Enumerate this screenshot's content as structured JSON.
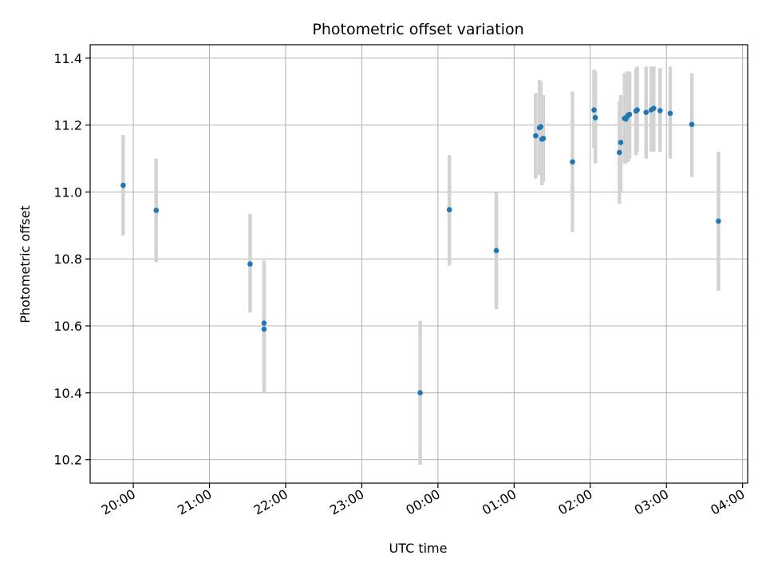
{
  "chart_data": {
    "type": "scatter",
    "title": "Photometric offset variation",
    "xlabel": "UTC time",
    "ylabel": "Photometric offset",
    "x_axis_type": "time",
    "xlim": [
      "19:26",
      "04:04"
    ],
    "ylim": [
      10.13,
      11.44
    ],
    "x_ticks": [
      "20:00",
      "21:00",
      "22:00",
      "23:00",
      "00:00",
      "01:00",
      "02:00",
      "03:00",
      "04:00"
    ],
    "x_tick_times": [
      "20:00",
      "21:00",
      "22:00",
      "23:00",
      "24:00",
      "25:00",
      "26:00",
      "27:00",
      "28:00"
    ],
    "y_ticks": [
      "10.2",
      "10.4",
      "10.6",
      "10.8",
      "11.0",
      "11.2",
      "11.4"
    ],
    "grid": true,
    "point_color": "#1f77b4",
    "errorbar_color": "#d3d3d3",
    "points": [
      {
        "time": "19:52",
        "value": 11.02,
        "low": 10.87,
        "high": 11.17
      },
      {
        "time": "20:18",
        "value": 10.945,
        "low": 10.79,
        "high": 11.1
      },
      {
        "time": "21:32",
        "value": 10.785,
        "low": 10.64,
        "high": 10.935
      },
      {
        "time": "21:43",
        "value": 10.608,
        "low": 10.42,
        "high": 10.795
      },
      {
        "time": "21:43",
        "value": 10.59,
        "low": 10.4,
        "high": 10.78
      },
      {
        "time": "23:46",
        "value": 10.4,
        "low": 10.185,
        "high": 10.615
      },
      {
        "time": "00:09",
        "value": 10.947,
        "low": 10.78,
        "high": 11.11
      },
      {
        "time": "00:46",
        "value": 10.825,
        "low": 10.65,
        "high": 11.0
      },
      {
        "time": "01:17",
        "value": 11.168,
        "low": 11.04,
        "high": 11.295
      },
      {
        "time": "01:20",
        "value": 11.192,
        "low": 11.05,
        "high": 11.335
      },
      {
        "time": "01:21",
        "value": 11.195,
        "low": 11.06,
        "high": 11.33
      },
      {
        "time": "01:22",
        "value": 11.158,
        "low": 11.02,
        "high": 11.29
      },
      {
        "time": "01:23",
        "value": 11.16,
        "low": 11.03,
        "high": 11.29
      },
      {
        "time": "01:46",
        "value": 11.09,
        "low": 10.88,
        "high": 11.3
      },
      {
        "time": "02:03",
        "value": 11.245,
        "low": 11.13,
        "high": 11.365
      },
      {
        "time": "02:04",
        "value": 11.222,
        "low": 11.085,
        "high": 11.36
      },
      {
        "time": "02:23",
        "value": 11.118,
        "low": 10.965,
        "high": 11.27
      },
      {
        "time": "02:24",
        "value": 11.148,
        "low": 11.0,
        "high": 11.29
      },
      {
        "time": "02:27",
        "value": 11.22,
        "low": 11.085,
        "high": 11.355
      },
      {
        "time": "02:28",
        "value": 11.218,
        "low": 11.085,
        "high": 11.35
      },
      {
        "time": "02:29",
        "value": 11.225,
        "low": 11.09,
        "high": 11.36
      },
      {
        "time": "02:30",
        "value": 11.23,
        "low": 11.09,
        "high": 11.36
      },
      {
        "time": "02:31",
        "value": 11.232,
        "low": 11.1,
        "high": 11.36
      },
      {
        "time": "02:36",
        "value": 11.242,
        "low": 11.11,
        "high": 11.37
      },
      {
        "time": "02:37",
        "value": 11.245,
        "low": 11.12,
        "high": 11.375
      },
      {
        "time": "02:44",
        "value": 11.238,
        "low": 11.1,
        "high": 11.375
      },
      {
        "time": "02:48",
        "value": 11.245,
        "low": 11.12,
        "high": 11.375
      },
      {
        "time": "02:50",
        "value": 11.25,
        "low": 11.12,
        "high": 11.375
      },
      {
        "time": "02:55",
        "value": 11.243,
        "low": 11.12,
        "high": 11.37
      },
      {
        "time": "03:03",
        "value": 11.235,
        "low": 11.1,
        "high": 11.375
      },
      {
        "time": "03:20",
        "value": 11.202,
        "low": 11.045,
        "high": 11.355
      },
      {
        "time": "03:41",
        "value": 10.913,
        "low": 10.705,
        "high": 11.12
      }
    ]
  }
}
